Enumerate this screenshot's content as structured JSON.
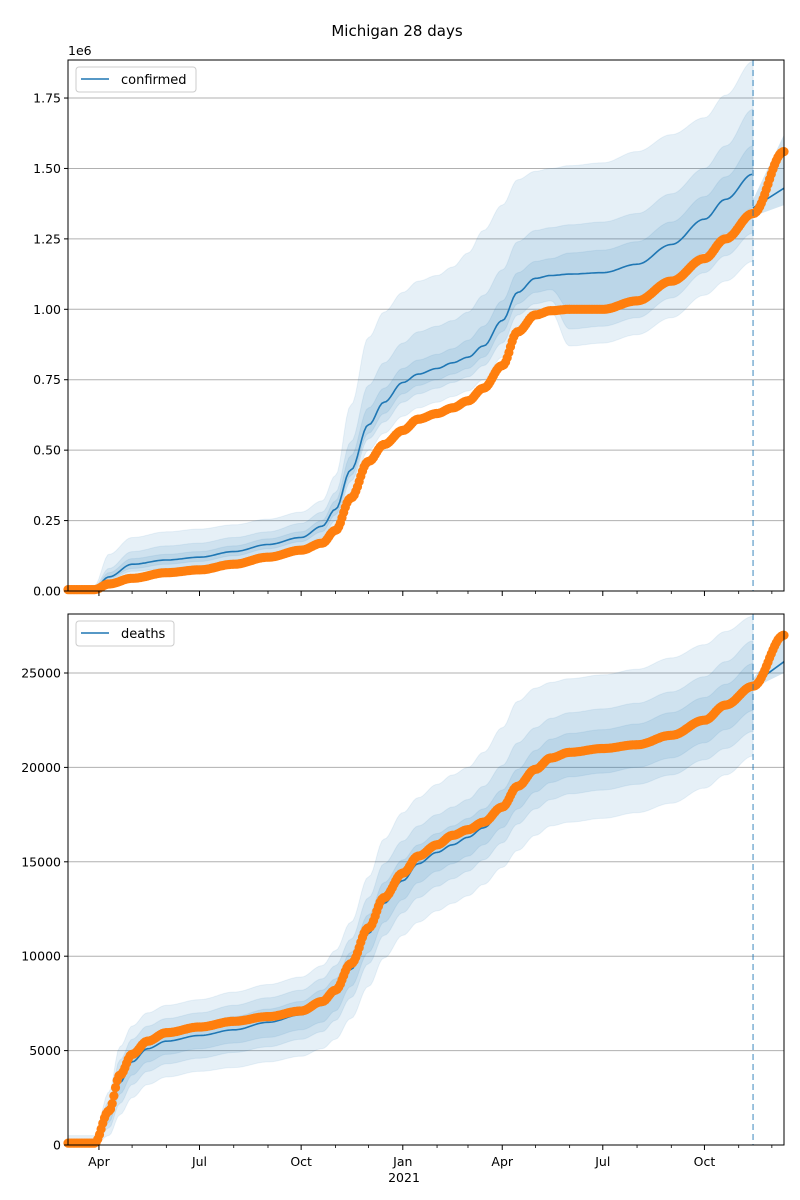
{
  "figure": {
    "title": "Michigan 28 days"
  },
  "colors": {
    "model_line": "#1f77b4",
    "observed": "#ff7f0e",
    "band": "#1f77b4",
    "grid": "#b0b0b0",
    "forecast_line": "#1f77b4"
  },
  "chart_data": [
    {
      "type": "line",
      "name": "confirmed",
      "title": "Michigan 28 days",
      "legend": [
        "confirmed"
      ],
      "legend_position": "top-left",
      "offset_label": "1e6",
      "xlabel": "",
      "ylabel": "",
      "ylim": [
        0,
        1.885
      ],
      "yticks": [
        0.0,
        0.25,
        0.5,
        0.75,
        1.0,
        1.25,
        1.5,
        1.75
      ],
      "ytick_labels": [
        "0.00",
        "0.25",
        "0.50",
        "0.75",
        "1.00",
        "1.25",
        "1.50",
        "1.75"
      ],
      "grid": "y",
      "xlim": [
        "2020-03-04",
        "2021-12-12"
      ],
      "xtick_labels": [],
      "forecast_start": "2021-11-14",
      "x": [
        "2020-03-04",
        "2020-03-28",
        "2020-04-10",
        "2020-05-01",
        "2020-06-01",
        "2020-07-01",
        "2020-08-01",
        "2020-09-01",
        "2020-10-01",
        "2020-10-20",
        "2020-11-01",
        "2020-11-15",
        "2020-12-01",
        "2020-12-15",
        "2021-01-01",
        "2021-01-15",
        "2021-02-01",
        "2021-02-15",
        "2021-03-01",
        "2021-03-15",
        "2021-04-01",
        "2021-04-15",
        "2021-05-01",
        "2021-05-15",
        "2021-06-01",
        "2021-07-01",
        "2021-08-01",
        "2021-09-01",
        "2021-10-01",
        "2021-10-20",
        "2021-11-14",
        "2021-12-12"
      ],
      "series": [
        {
          "name": "confirmed (model median)",
          "values": [
            0.005,
            0.01,
            0.05,
            0.095,
            0.11,
            0.12,
            0.14,
            0.165,
            0.19,
            0.23,
            0.29,
            0.43,
            0.59,
            0.67,
            0.74,
            0.77,
            0.79,
            0.81,
            0.83,
            0.87,
            0.96,
            1.06,
            1.11,
            1.12,
            1.125,
            1.13,
            1.16,
            1.23,
            1.32,
            1.39,
            1.48,
            null
          ]
        },
        {
          "name": "confirmed (forecast median)",
          "x_start": "2021-11-14",
          "values": [
            1.36,
            1.43
          ]
        },
        {
          "name": "observed confirmed",
          "values": [
            0.005,
            0.005,
            0.025,
            0.045,
            0.065,
            0.075,
            0.095,
            0.12,
            0.145,
            0.17,
            0.215,
            0.33,
            0.46,
            0.52,
            0.57,
            0.61,
            0.63,
            0.65,
            0.675,
            0.72,
            0.8,
            0.92,
            0.98,
            0.995,
            1.0,
            1.0,
            1.03,
            1.1,
            1.18,
            1.25,
            1.34,
            1.56
          ]
        }
      ],
      "bands": [
        {
          "level": "outer",
          "lower": [
            0.0,
            0.0,
            0.03,
            0.05,
            0.06,
            0.07,
            0.09,
            0.11,
            0.13,
            0.16,
            0.21,
            0.35,
            0.5,
            0.56,
            0.62,
            0.65,
            0.67,
            0.69,
            0.71,
            0.75,
            0.83,
            0.94,
            0.98,
            0.99,
            0.87,
            0.88,
            0.91,
            0.97,
            1.05,
            1.1,
            1.17
          ],
          "upper": [
            0.01,
            0.02,
            0.13,
            0.19,
            0.21,
            0.22,
            0.235,
            0.255,
            0.28,
            0.32,
            0.41,
            0.66,
            0.9,
            0.99,
            1.06,
            1.1,
            1.12,
            1.15,
            1.2,
            1.28,
            1.37,
            1.46,
            1.49,
            1.5,
            1.51,
            1.52,
            1.56,
            1.62,
            1.68,
            1.76,
            1.88
          ]
        },
        {
          "level": "middle",
          "lower": [
            0.0,
            0.005,
            0.04,
            0.07,
            0.08,
            0.09,
            0.11,
            0.13,
            0.155,
            0.19,
            0.25,
            0.39,
            0.54,
            0.6,
            0.67,
            0.7,
            0.72,
            0.74,
            0.76,
            0.8,
            0.88,
            0.98,
            1.02,
            1.03,
            0.93,
            0.94,
            0.97,
            1.04,
            1.13,
            1.19,
            1.27
          ],
          "upper": [
            0.008,
            0.015,
            0.08,
            0.14,
            0.16,
            0.17,
            0.19,
            0.21,
            0.24,
            0.28,
            0.35,
            0.53,
            0.73,
            0.81,
            0.88,
            0.92,
            0.94,
            0.96,
            0.99,
            1.05,
            1.14,
            1.24,
            1.28,
            1.29,
            1.3,
            1.31,
            1.34,
            1.41,
            1.5,
            1.58,
            1.71
          ]
        },
        {
          "level": "inner",
          "lower": [
            0.002,
            0.007,
            0.045,
            0.08,
            0.095,
            0.105,
            0.125,
            0.15,
            0.175,
            0.21,
            0.27,
            0.41,
            0.56,
            0.63,
            0.7,
            0.73,
            0.75,
            0.77,
            0.79,
            0.83,
            0.92,
            1.02,
            1.06,
            1.07,
            1.0,
            1.01,
            1.04,
            1.11,
            1.2,
            1.27,
            1.36
          ],
          "upper": [
            0.007,
            0.012,
            0.065,
            0.115,
            0.13,
            0.14,
            0.16,
            0.185,
            0.21,
            0.25,
            0.32,
            0.48,
            0.65,
            0.72,
            0.79,
            0.82,
            0.84,
            0.86,
            0.89,
            0.94,
            1.03,
            1.13,
            1.17,
            1.18,
            1.2,
            1.21,
            1.24,
            1.31,
            1.4,
            1.47,
            1.58
          ]
        }
      ],
      "forecast_band": {
        "x": [
          "2021-11-14",
          "2021-12-12"
        ],
        "lower": [
          1.33,
          1.37
        ],
        "upper": [
          1.39,
          1.62
        ]
      }
    },
    {
      "type": "line",
      "name": "deaths",
      "legend": [
        "deaths"
      ],
      "legend_position": "top-left",
      "xlabel": "",
      "ylabel": "",
      "ylim": [
        0,
        28125
      ],
      "yticks": [
        0,
        5000,
        10000,
        15000,
        20000,
        25000
      ],
      "ytick_labels": [
        "0",
        "5000",
        "10000",
        "15000",
        "20000",
        "25000"
      ],
      "grid": "y",
      "xlim": [
        "2020-03-04",
        "2021-12-12"
      ],
      "xticks": [
        "2020-04-01",
        "2020-07-01",
        "2020-10-01",
        "2021-01-01",
        "2021-04-01",
        "2021-07-01",
        "2021-10-01"
      ],
      "xtick_labels": [
        "Apr",
        "Jul",
        "Oct",
        "Jan",
        "Apr",
        "Jul",
        "Oct"
      ],
      "xtick_sublabel": "2021",
      "forecast_start": "2021-11-14",
      "x": [
        "2020-03-04",
        "2020-03-28",
        "2020-04-10",
        "2020-04-20",
        "2020-05-01",
        "2020-05-15",
        "2020-06-01",
        "2020-07-01",
        "2020-08-01",
        "2020-09-01",
        "2020-10-01",
        "2020-10-20",
        "2020-11-01",
        "2020-11-15",
        "2020-12-01",
        "2020-12-15",
        "2021-01-01",
        "2021-01-15",
        "2021-02-01",
        "2021-02-15",
        "2021-03-01",
        "2021-03-15",
        "2021-04-01",
        "2021-04-15",
        "2021-05-01",
        "2021-05-15",
        "2021-06-01",
        "2021-07-01",
        "2021-08-01",
        "2021-09-01",
        "2021-10-01",
        "2021-10-20",
        "2021-11-14",
        "2021-12-12"
      ],
      "series": [
        {
          "name": "deaths (model median)",
          "values": [
            100,
            100,
            1600,
            3300,
            4400,
            5100,
            5500,
            5800,
            6100,
            6500,
            6900,
            7400,
            8000,
            9300,
            11200,
            12800,
            14000,
            14900,
            15500,
            15900,
            16300,
            16800,
            17700,
            18800,
            19800,
            20400,
            20700,
            20900,
            21200,
            21700,
            22500,
            23200,
            24500,
            null
          ]
        },
        {
          "name": "deaths (forecast median)",
          "x_start": "2021-11-14",
          "values": [
            24400,
            25600
          ]
        },
        {
          "name": "observed deaths",
          "values": [
            100,
            100,
            1800,
            3700,
            4800,
            5500,
            5950,
            6250,
            6550,
            6800,
            7100,
            7600,
            8200,
            9600,
            11500,
            13100,
            14400,
            15300,
            15900,
            16400,
            16700,
            17100,
            17900,
            19000,
            19900,
            20500,
            20800,
            21000,
            21200,
            21700,
            22500,
            23300,
            24300,
            27000
          ]
        }
      ],
      "bands": [
        {
          "level": "outer",
          "lower": [
            0,
            0,
            500,
            1600,
            2500,
            3200,
            3600,
            3900,
            4100,
            4400,
            4700,
            5100,
            5600,
            6700,
            8400,
            9900,
            11100,
            11800,
            12400,
            12800,
            13200,
            13800,
            14700,
            15600,
            16400,
            16900,
            17100,
            17300,
            17600,
            18100,
            18900,
            19600,
            20600
          ],
          "upper": [
            500,
            500,
            2800,
            5200,
            6300,
            7000,
            7400,
            7700,
            8100,
            8500,
            8900,
            9500,
            10300,
            11800,
            14200,
            16200,
            17600,
            18400,
            19100,
            19600,
            20000,
            20800,
            22100,
            23500,
            24200,
            24500,
            24700,
            24900,
            25200,
            25800,
            26500,
            27200,
            28000
          ]
        },
        {
          "level": "middle",
          "lower": [
            0,
            0,
            900,
            2200,
            3200,
            3900,
            4300,
            4600,
            4900,
            5200,
            5600,
            6000,
            6600,
            7800,
            9600,
            11100,
            12300,
            13100,
            13700,
            14100,
            14500,
            15100,
            16000,
            17000,
            17800,
            18300,
            18600,
            18800,
            19100,
            19600,
            20400,
            21000,
            21900
          ],
          "upper": [
            300,
            300,
            2300,
            4500,
            5600,
            6300,
            6700,
            7000,
            7400,
            7800,
            8200,
            8800,
            9500,
            10900,
            13100,
            14900,
            16100,
            16900,
            17500,
            17900,
            18300,
            19000,
            20100,
            21300,
            22100,
            22600,
            22900,
            23100,
            23400,
            24000,
            24800,
            25600,
            26700
          ]
        },
        {
          "level": "inner",
          "lower": [
            50,
            50,
            1200,
            2700,
            3700,
            4400,
            4800,
            5100,
            5400,
            5700,
            6100,
            6500,
            7100,
            8400,
            10200,
            11800,
            13000,
            13900,
            14500,
            14900,
            15300,
            15900,
            16800,
            17800,
            18700,
            19200,
            19500,
            19700,
            20000,
            20500,
            21300,
            22000,
            23000
          ],
          "upper": [
            200,
            200,
            2000,
            3900,
            5000,
            5700,
            6100,
            6400,
            6800,
            7200,
            7600,
            8200,
            8800,
            10200,
            12200,
            13900,
            15100,
            15900,
            16500,
            16900,
            17300,
            17800,
            18800,
            19900,
            20900,
            21500,
            21800,
            22000,
            22300,
            22900,
            23700,
            24400,
            25500
          ]
        }
      ],
      "forecast_band": {
        "x": [
          "2021-11-14",
          "2021-12-12"
        ],
        "lower": [
          24200,
          25000
        ],
        "upper": [
          24700,
          26800
        ]
      }
    }
  ]
}
